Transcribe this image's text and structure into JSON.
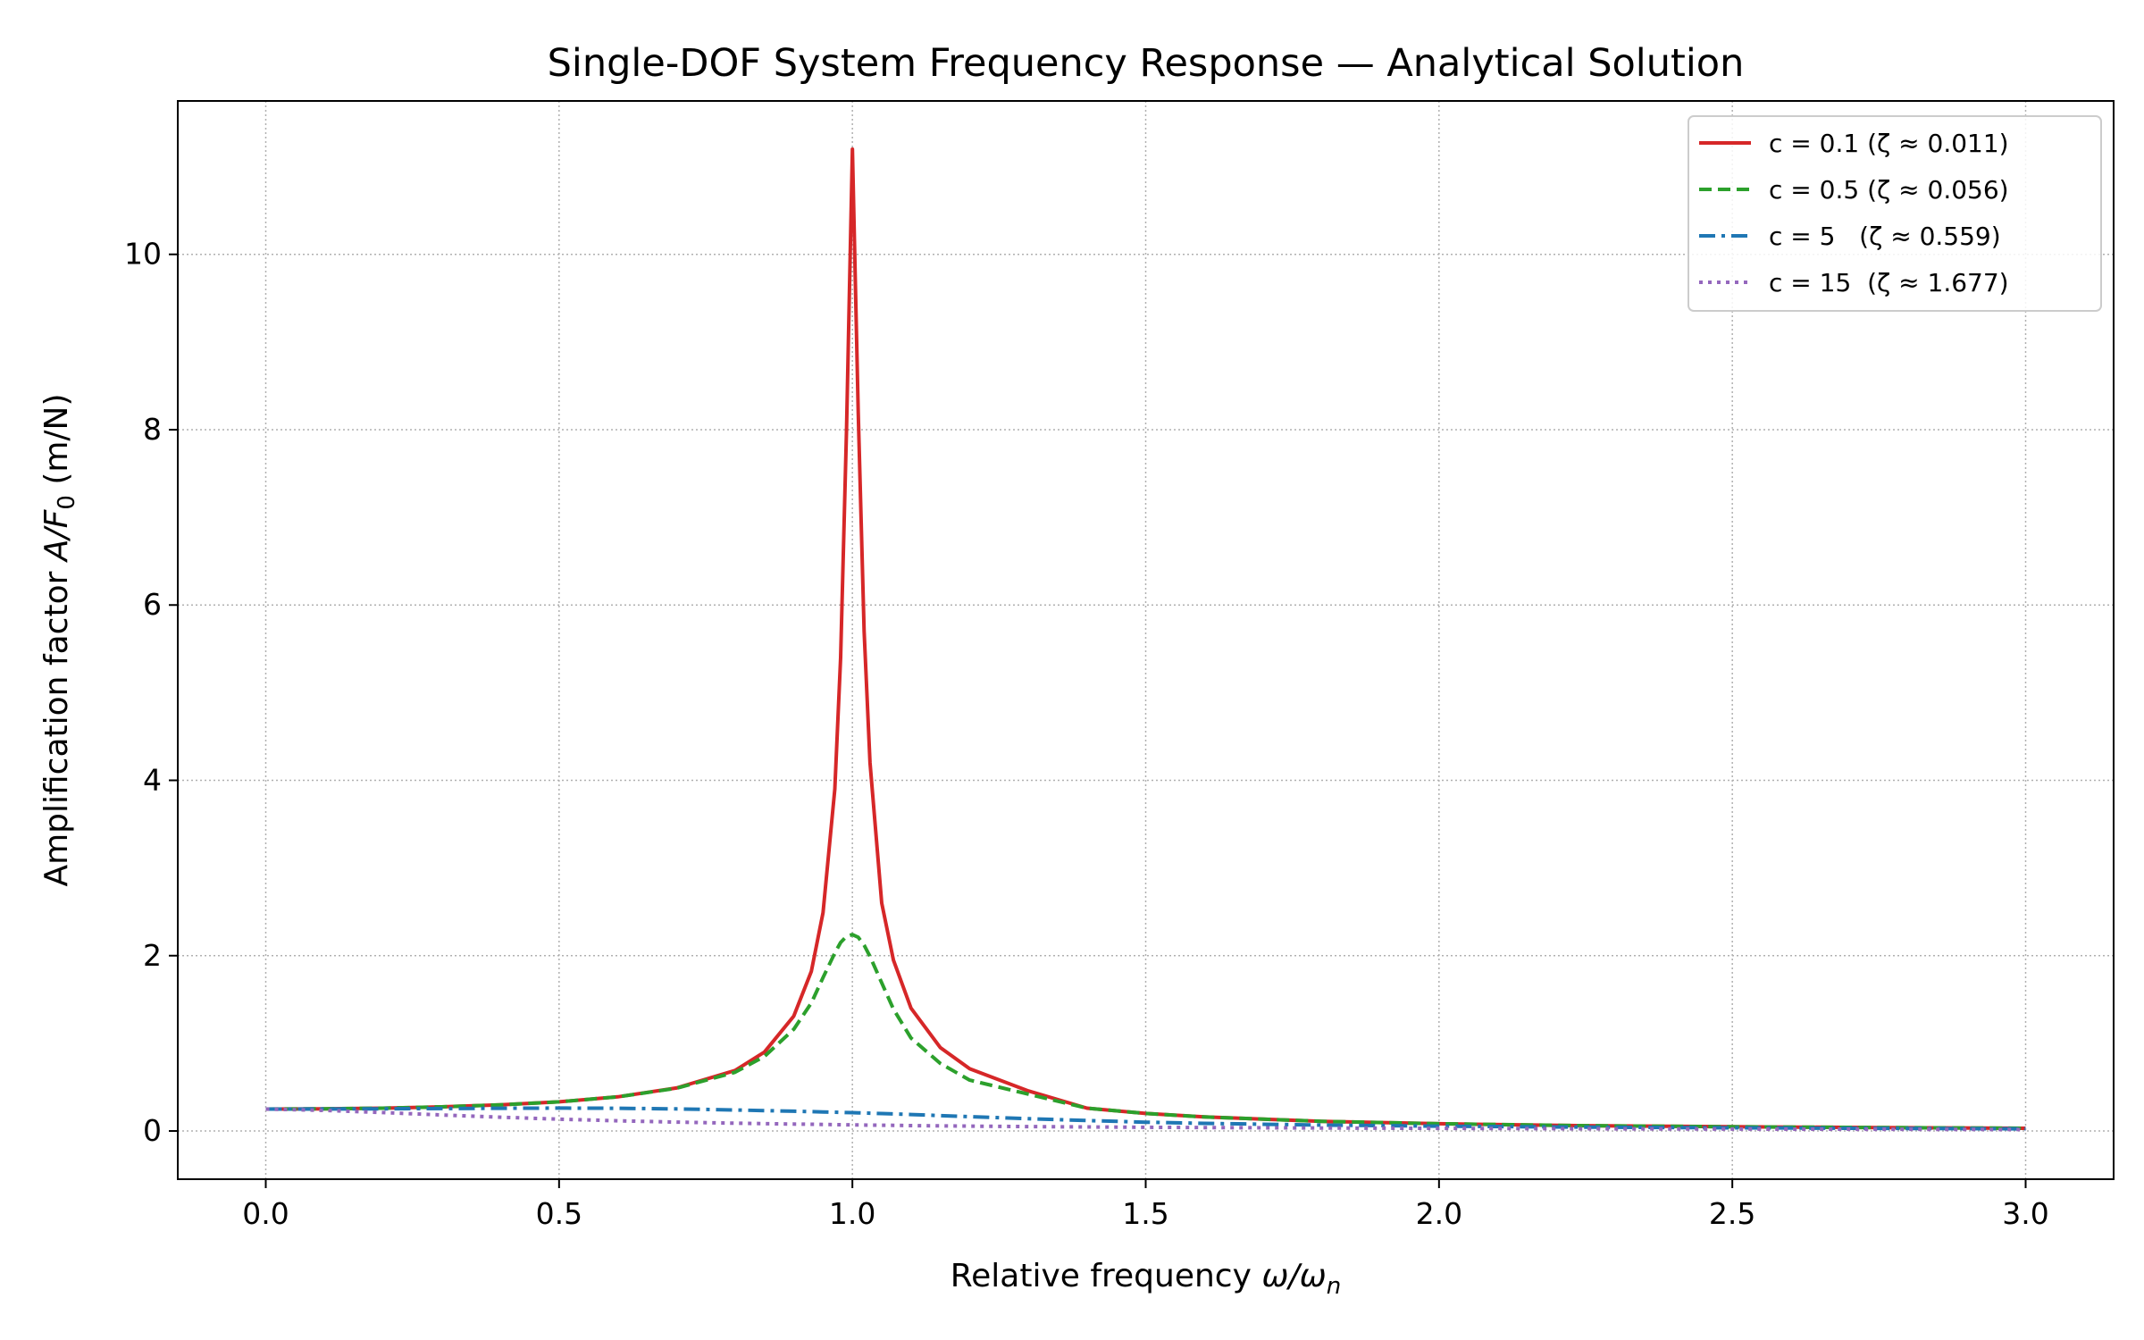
{
  "chart_data": {
    "type": "line",
    "title": "Single-DOF System Frequency Response — Analytical Solution",
    "xlabel": "Relative frequency ω/ωn",
    "ylabel": "Amplification factor A/F0 (m/N)",
    "xlabel_parts": {
      "text": "Relative frequency ",
      "var": "ω/ω",
      "sub": "n"
    },
    "ylabel_parts": {
      "text": "Amplification factor ",
      "var": "A/F",
      "sub": "0",
      "unit": " (m/N)"
    },
    "xlim": [
      -0.15,
      3.15
    ],
    "ylim": [
      -0.55,
      11.75
    ],
    "xticks": [
      0.0,
      0.5,
      1.0,
      1.5,
      2.0,
      2.5,
      3.0
    ],
    "xtick_labels": [
      "0.0",
      "0.5",
      "1.0",
      "1.5",
      "2.0",
      "2.5",
      "3.0"
    ],
    "yticks": [
      0,
      2,
      4,
      6,
      8,
      10
    ],
    "ytick_labels": [
      "0",
      "2",
      "4",
      "6",
      "8",
      "10"
    ],
    "grid": true,
    "legend_position": "top-right",
    "x": [
      0.0,
      0.1,
      0.2,
      0.3,
      0.4,
      0.5,
      0.6,
      0.7,
      0.8,
      0.85,
      0.9,
      0.93,
      0.95,
      0.97,
      0.98,
      0.99,
      1.0,
      1.01,
      1.02,
      1.03,
      1.05,
      1.07,
      1.1,
      1.15,
      1.2,
      1.3,
      1.4,
      1.5,
      1.6,
      1.8,
      2.0,
      2.25,
      2.5,
      2.75,
      3.0
    ],
    "series": [
      {
        "name": "c = 0.1 (ζ ≈ 0.011)",
        "color": "#d62728",
        "style": "solid",
        "values": [
          0.25,
          0.253,
          0.26,
          0.275,
          0.298,
          0.333,
          0.39,
          0.49,
          0.69,
          0.9,
          1.31,
          1.82,
          2.49,
          3.9,
          5.4,
          8.0,
          11.2,
          8.2,
          5.7,
          4.2,
          2.6,
          1.95,
          1.4,
          0.95,
          0.71,
          0.457,
          0.26,
          0.2,
          0.16,
          0.11,
          0.083,
          0.06,
          0.048,
          0.039,
          0.031
        ]
      },
      {
        "name": "c = 0.5 (ζ ≈ 0.056)",
        "color": "#2ca02c",
        "style": "dashed",
        "values": [
          0.25,
          0.253,
          0.26,
          0.275,
          0.298,
          0.333,
          0.39,
          0.487,
          0.67,
          0.85,
          1.16,
          1.46,
          1.75,
          2.03,
          2.15,
          2.22,
          2.24,
          2.21,
          2.12,
          1.99,
          1.69,
          1.39,
          1.06,
          0.77,
          0.58,
          0.42,
          0.26,
          0.2,
          0.16,
          0.11,
          0.083,
          0.06,
          0.048,
          0.039,
          0.031
        ]
      },
      {
        "name": "c = 5   (ζ ≈ 0.559)",
        "color": "#1f77b4",
        "style": "dashdot",
        "values": [
          0.25,
          0.251,
          0.253,
          0.256,
          0.259,
          0.261,
          0.259,
          0.252,
          0.24,
          0.233,
          0.225,
          0.22,
          0.217,
          0.214,
          0.212,
          0.21,
          0.209,
          0.207,
          0.205,
          0.203,
          0.199,
          0.195,
          0.188,
          0.176,
          0.163,
          0.14,
          0.12,
          0.1,
          0.087,
          0.068,
          0.055,
          0.044,
          0.036,
          0.03,
          0.025
        ]
      },
      {
        "name": "c = 15  (ζ ≈ 1.677)",
        "color": "#9467bd",
        "style": "dotted",
        "values": [
          0.25,
          0.235,
          0.21,
          0.183,
          0.157,
          0.135,
          0.116,
          0.101,
          0.089,
          0.084,
          0.079,
          0.077,
          0.075,
          0.073,
          0.072,
          0.071,
          0.07,
          0.069,
          0.068,
          0.067,
          0.066,
          0.064,
          0.061,
          0.058,
          0.055,
          0.05,
          0.046,
          0.042,
          0.039,
          0.034,
          0.03,
          0.026,
          0.022,
          0.02,
          0.017
        ]
      }
    ]
  }
}
